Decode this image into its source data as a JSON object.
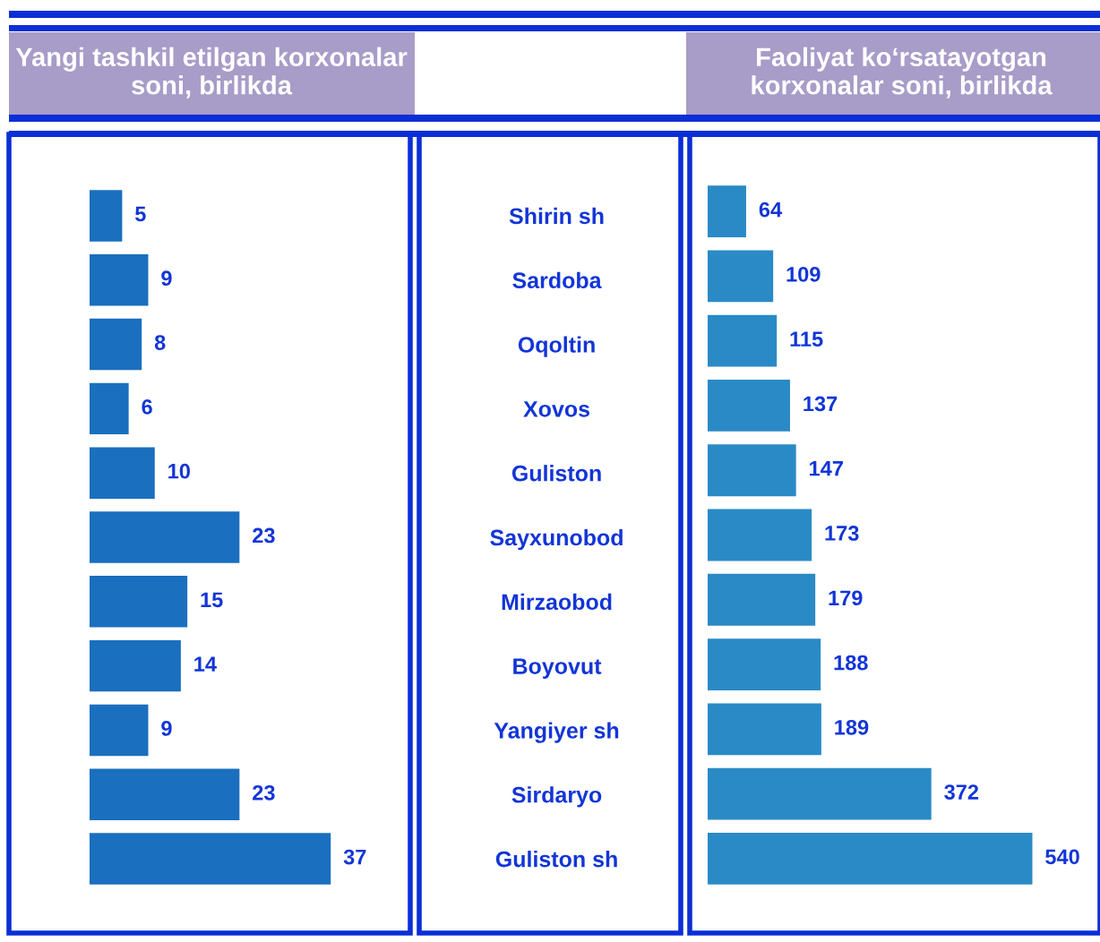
{
  "chart_data": [
    {
      "type": "bar",
      "orientation": "horizontal",
      "title": "Yangi tashkil etilgan korxonalar soni, birlikda",
      "categories": [
        "Shirin sh",
        "Sardoba",
        "Oqoltin",
        "Xovos",
        "Guliston",
        "Sayxunobod",
        "Mirzaobod",
        "Boyovut",
        "Yangiyer sh",
        "Sirdaryo",
        "Guliston sh"
      ],
      "values": [
        5,
        9,
        8,
        6,
        10,
        23,
        15,
        14,
        9,
        23,
        37
      ],
      "color": "#1a6fbf",
      "data_labels": true,
      "grid": false
    },
    {
      "type": "bar",
      "orientation": "horizontal",
      "title": "Faoliyat ko‘rsatayotgan korxonalar soni, birlikda",
      "categories": [
        null,
        null,
        null,
        null,
        null,
        null,
        null,
        null,
        null,
        null,
        null
      ],
      "values": [
        64,
        109,
        115,
        137,
        147,
        173,
        179,
        188,
        189,
        372,
        540
      ],
      "color": "#2a8ac6",
      "data_labels": true,
      "grid": false
    }
  ]
}
